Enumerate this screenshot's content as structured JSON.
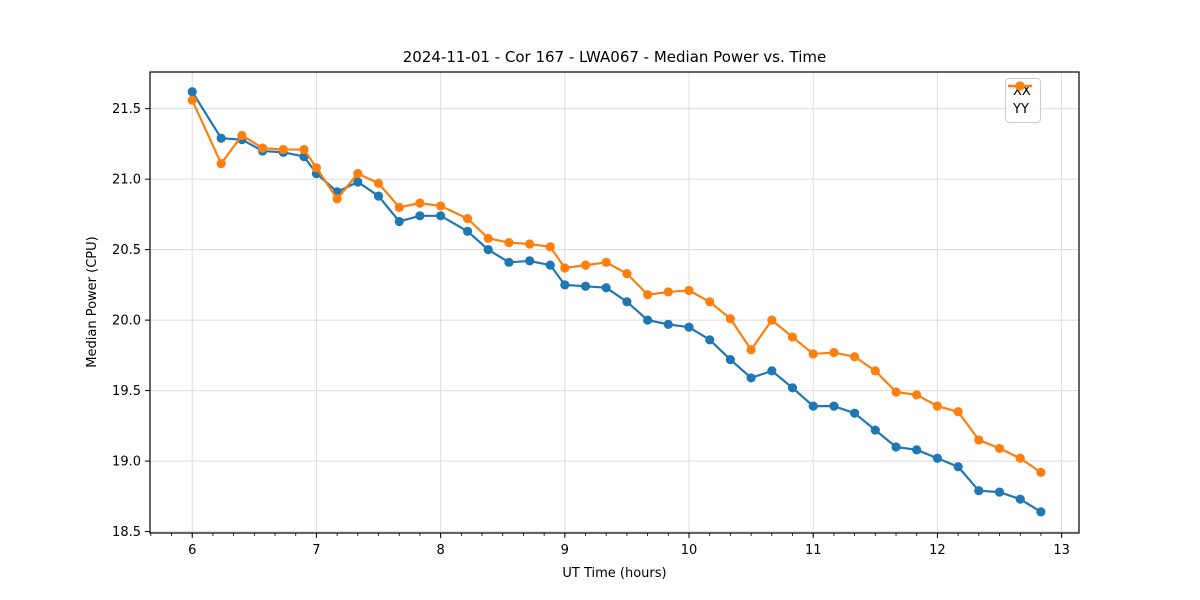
{
  "chart_data": {
    "type": "line",
    "title": "2024-11-01 - Cor 167 - LWA067 - Median Power vs. Time",
    "xlabel": "UT Time (hours)",
    "ylabel": "Median Power (CPU)",
    "xlim": [
      5.66,
      13.14
    ],
    "ylim": [
      18.49,
      21.76
    ],
    "grid": true,
    "legend_position": "upper right",
    "xticks": [
      {
        "v": 6,
        "label": "6"
      },
      {
        "v": 7,
        "label": "7"
      },
      {
        "v": 8,
        "label": "8"
      },
      {
        "v": 9,
        "label": "9"
      },
      {
        "v": 10,
        "label": "10"
      },
      {
        "v": 11,
        "label": "11"
      },
      {
        "v": 12,
        "label": "12"
      },
      {
        "v": 13,
        "label": "13"
      }
    ],
    "yticks": [
      {
        "v": 18.5,
        "label": "18.5"
      },
      {
        "v": 19.0,
        "label": "19.0"
      },
      {
        "v": 19.5,
        "label": "19.5"
      },
      {
        "v": 20.0,
        "label": "20.0"
      },
      {
        "v": 20.5,
        "label": "20.5"
      },
      {
        "v": 21.0,
        "label": "21.0"
      },
      {
        "v": 21.5,
        "label": "21.5"
      }
    ],
    "minor_xtick_step": 0.166667,
    "x": [
      6.0,
      6.233,
      6.4,
      6.567,
      6.733,
      6.9,
      7.0,
      7.167,
      7.333,
      7.5,
      7.667,
      7.833,
      8.0,
      8.217,
      8.383,
      8.55,
      8.717,
      8.883,
      9.0,
      9.167,
      9.333,
      9.5,
      9.667,
      9.833,
      10.0,
      10.167,
      10.333,
      10.5,
      10.667,
      10.833,
      11.0,
      11.167,
      11.333,
      11.5,
      11.667,
      11.833,
      12.0,
      12.167,
      12.333,
      12.5,
      12.667,
      12.833
    ],
    "series": [
      {
        "name": "XX",
        "color": "#1f77b4",
        "values": [
          21.62,
          21.29,
          21.28,
          21.2,
          21.19,
          21.16,
          21.04,
          20.91,
          20.98,
          20.88,
          20.7,
          20.74,
          20.74,
          20.63,
          20.5,
          20.41,
          20.42,
          20.39,
          20.25,
          20.24,
          20.23,
          20.13,
          20.0,
          19.97,
          19.95,
          19.86,
          19.72,
          19.59,
          19.64,
          19.52,
          19.39,
          19.39,
          19.34,
          19.22,
          19.1,
          19.08,
          19.02,
          18.96,
          18.79,
          18.78,
          18.73,
          18.64
        ]
      },
      {
        "name": "YY",
        "color": "#ff7f0e",
        "values": [
          21.56,
          21.11,
          21.31,
          21.22,
          21.21,
          21.21,
          21.08,
          20.86,
          21.04,
          20.97,
          20.8,
          20.83,
          20.81,
          20.72,
          20.58,
          20.55,
          20.54,
          20.52,
          20.37,
          20.39,
          20.41,
          20.33,
          20.18,
          20.2,
          20.21,
          20.13,
          20.01,
          19.79,
          20.0,
          19.88,
          19.76,
          19.77,
          19.74,
          19.64,
          19.49,
          19.47,
          19.39,
          19.35,
          19.15,
          19.09,
          19.02,
          18.92
        ]
      }
    ],
    "style": {
      "grid_color": "#dcdcdc",
      "spine_color": "#000000",
      "tick_color": "#000000",
      "background": "#ffffff",
      "line_width": 2.2,
      "marker_radius": 4.6
    }
  }
}
